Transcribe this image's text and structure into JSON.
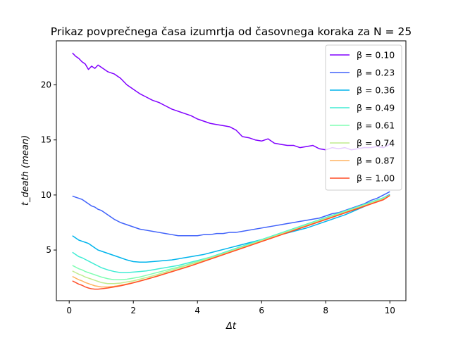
{
  "chart_data": {
    "type": "line",
    "title": "Prikaz povprečnega časa izumrtja od časovnega koraka za N = 25",
    "xlabel": "Δt",
    "ylabel": "t_death (mean)",
    "xlim": [
      -0.4,
      10.5
    ],
    "ylim": [
      0.4,
      24.0
    ],
    "xticks": [
      0,
      2,
      4,
      6,
      8,
      10
    ],
    "yticks": [
      5,
      10,
      15,
      20
    ],
    "grid": false,
    "legend_position": "top-right",
    "series": [
      {
        "name": "β = 0.10",
        "color": "#8000ff",
        "x": [
          0.1,
          0.2,
          0.3,
          0.4,
          0.5,
          0.6,
          0.7,
          0.8,
          0.9,
          1.0,
          1.2,
          1.4,
          1.6,
          1.8,
          2.0,
          2.2,
          2.4,
          2.6,
          2.8,
          3.0,
          3.2,
          3.4,
          3.6,
          3.8,
          4.0,
          4.2,
          4.4,
          4.6,
          4.8,
          5.0,
          5.2,
          5.4,
          5.6,
          5.8,
          6.0,
          6.2,
          6.4,
          6.6,
          6.8,
          7.0,
          7.2,
          7.4,
          7.6,
          7.8,
          8.0,
          8.2,
          8.4,
          8.6,
          8.8,
          9.0,
          9.2,
          9.4,
          9.6,
          9.8,
          10.0
        ],
        "y": [
          22.9,
          22.6,
          22.4,
          22.1,
          21.9,
          21.4,
          21.7,
          21.5,
          21.8,
          21.6,
          21.2,
          21.0,
          20.6,
          20.0,
          19.6,
          19.2,
          18.9,
          18.6,
          18.4,
          18.1,
          17.8,
          17.6,
          17.4,
          17.2,
          16.9,
          16.7,
          16.5,
          16.4,
          16.3,
          16.2,
          15.9,
          15.3,
          15.2,
          15.0,
          14.9,
          15.1,
          14.7,
          14.6,
          14.5,
          14.5,
          14.3,
          14.4,
          14.5,
          14.2,
          14.1,
          14.3,
          14.2,
          14.3,
          14.1,
          14.2,
          14.3,
          14.3,
          14.4,
          14.3,
          14.6
        ]
      },
      {
        "name": "β = 0.23",
        "color": "#4062fa",
        "x": [
          0.1,
          0.2,
          0.3,
          0.4,
          0.5,
          0.6,
          0.7,
          0.8,
          0.9,
          1.0,
          1.2,
          1.4,
          1.6,
          1.8,
          2.0,
          2.2,
          2.4,
          2.6,
          2.8,
          3.0,
          3.2,
          3.4,
          3.6,
          3.8,
          4.0,
          4.2,
          4.4,
          4.6,
          4.8,
          5.0,
          5.2,
          5.4,
          5.6,
          5.8,
          6.0,
          6.2,
          6.4,
          6.6,
          6.8,
          7.0,
          7.2,
          7.4,
          7.6,
          7.8,
          8.0,
          8.2,
          8.4,
          8.6,
          8.8,
          9.0,
          9.2,
          9.4,
          9.6,
          9.8,
          10.0
        ],
        "y": [
          9.9,
          9.8,
          9.7,
          9.6,
          9.4,
          9.2,
          9.0,
          8.9,
          8.7,
          8.6,
          8.2,
          7.8,
          7.5,
          7.3,
          7.1,
          6.9,
          6.8,
          6.7,
          6.6,
          6.5,
          6.4,
          6.3,
          6.3,
          6.3,
          6.3,
          6.4,
          6.4,
          6.5,
          6.5,
          6.6,
          6.6,
          6.7,
          6.8,
          6.9,
          7.0,
          7.1,
          7.2,
          7.3,
          7.4,
          7.5,
          7.6,
          7.7,
          7.8,
          7.9,
          8.1,
          8.3,
          8.4,
          8.6,
          8.8,
          9.0,
          9.2,
          9.5,
          9.7,
          10.0,
          10.3
        ]
      },
      {
        "name": "β = 0.36",
        "color": "#00b4ec",
        "x": [
          0.1,
          0.2,
          0.3,
          0.4,
          0.5,
          0.6,
          0.7,
          0.8,
          0.9,
          1.0,
          1.2,
          1.4,
          1.6,
          1.8,
          2.0,
          2.2,
          2.4,
          2.6,
          2.8,
          3.0,
          3.2,
          3.4,
          3.6,
          3.8,
          4.0,
          4.2,
          4.4,
          4.6,
          4.8,
          5.0,
          5.2,
          5.4,
          5.6,
          5.8,
          6.0,
          6.2,
          6.4,
          6.6,
          6.8,
          7.0,
          7.2,
          7.4,
          7.6,
          7.8,
          8.0,
          8.2,
          8.4,
          8.6,
          8.8,
          9.0,
          9.2,
          9.4,
          9.6,
          9.8,
          10.0
        ],
        "y": [
          6.3,
          6.1,
          5.9,
          5.8,
          5.7,
          5.6,
          5.4,
          5.2,
          5.0,
          4.9,
          4.7,
          4.5,
          4.3,
          4.1,
          3.95,
          3.9,
          3.9,
          3.95,
          4.0,
          4.05,
          4.1,
          4.2,
          4.3,
          4.4,
          4.5,
          4.6,
          4.75,
          4.9,
          5.05,
          5.2,
          5.35,
          5.5,
          5.65,
          5.8,
          5.95,
          6.1,
          6.25,
          6.4,
          6.55,
          6.7,
          6.85,
          7.0,
          7.2,
          7.4,
          7.6,
          7.8,
          8.0,
          8.2,
          8.45,
          8.7,
          8.95,
          9.2,
          9.45,
          9.75,
          10.05
        ]
      },
      {
        "name": "β = 0.49",
        "color": "#40ecd4",
        "x": [
          0.1,
          0.2,
          0.3,
          0.4,
          0.5,
          0.6,
          0.7,
          0.8,
          0.9,
          1.0,
          1.2,
          1.4,
          1.6,
          1.8,
          2.0,
          2.2,
          2.4,
          2.6,
          2.8,
          3.0,
          3.2,
          3.4,
          3.6,
          3.8,
          4.0,
          4.2,
          4.4,
          4.6,
          4.8,
          5.0,
          5.2,
          5.4,
          5.6,
          5.8,
          6.0,
          6.2,
          6.4,
          6.6,
          6.8,
          7.0,
          7.2,
          7.4,
          7.6,
          7.8,
          8.0,
          8.2,
          8.4,
          8.6,
          8.8,
          9.0,
          9.2,
          9.4,
          9.6,
          9.8,
          10.0
        ],
        "y": [
          4.8,
          4.6,
          4.4,
          4.3,
          4.15,
          4.0,
          3.85,
          3.7,
          3.55,
          3.4,
          3.2,
          3.05,
          2.95,
          2.95,
          3.0,
          3.05,
          3.1,
          3.2,
          3.3,
          3.4,
          3.5,
          3.6,
          3.75,
          3.9,
          4.05,
          4.2,
          4.35,
          4.55,
          4.75,
          4.95,
          5.15,
          5.35,
          5.55,
          5.75,
          5.95,
          6.15,
          6.35,
          6.55,
          6.75,
          6.95,
          7.15,
          7.35,
          7.55,
          7.75,
          7.95,
          8.15,
          8.35,
          8.55,
          8.75,
          8.95,
          9.15,
          9.35,
          9.55,
          9.75,
          9.98
        ]
      },
      {
        "name": "β = 0.61",
        "color": "#80feb3",
        "x": [
          0.1,
          0.2,
          0.3,
          0.4,
          0.5,
          0.6,
          0.7,
          0.8,
          0.9,
          1.0,
          1.2,
          1.4,
          1.6,
          1.8,
          2.0,
          2.2,
          2.4,
          2.6,
          2.8,
          3.0,
          3.2,
          3.4,
          3.6,
          3.8,
          4.0,
          4.2,
          4.4,
          4.6,
          4.8,
          5.0,
          5.2,
          5.4,
          5.6,
          5.8,
          6.0,
          6.2,
          6.4,
          6.6,
          6.8,
          7.0,
          7.2,
          7.4,
          7.6,
          7.8,
          8.0,
          8.2,
          8.4,
          8.6,
          8.8,
          9.0,
          9.2,
          9.4,
          9.6,
          9.8,
          10.0
        ],
        "y": [
          3.6,
          3.45,
          3.3,
          3.2,
          3.05,
          2.95,
          2.85,
          2.75,
          2.65,
          2.55,
          2.4,
          2.3,
          2.3,
          2.35,
          2.45,
          2.55,
          2.7,
          2.85,
          3.0,
          3.15,
          3.3,
          3.45,
          3.6,
          3.78,
          3.96,
          4.14,
          4.32,
          4.5,
          4.7,
          4.9,
          5.1,
          5.3,
          5.5,
          5.7,
          5.9,
          6.1,
          6.3,
          6.5,
          6.7,
          6.9,
          7.1,
          7.3,
          7.5,
          7.7,
          7.9,
          8.1,
          8.3,
          8.5,
          8.7,
          8.9,
          9.1,
          9.3,
          9.5,
          9.7,
          9.98
        ]
      },
      {
        "name": "β = 0.74",
        "color": "#c0eb8d",
        "x": [
          0.1,
          0.2,
          0.3,
          0.4,
          0.5,
          0.6,
          0.7,
          0.8,
          0.9,
          1.0,
          1.2,
          1.4,
          1.6,
          1.8,
          2.0,
          2.2,
          2.4,
          2.6,
          2.8,
          3.0,
          3.2,
          3.4,
          3.6,
          3.8,
          4.0,
          4.2,
          4.4,
          4.6,
          4.8,
          5.0,
          5.2,
          5.4,
          5.6,
          5.8,
          6.0,
          6.2,
          6.4,
          6.6,
          6.8,
          7.0,
          7.2,
          7.4,
          7.6,
          7.8,
          8.0,
          8.2,
          8.4,
          8.6,
          8.8,
          9.0,
          9.2,
          9.4,
          9.6,
          9.8,
          10.0
        ],
        "y": [
          3.1,
          2.95,
          2.8,
          2.7,
          2.55,
          2.45,
          2.35,
          2.25,
          2.15,
          2.05,
          1.95,
          1.95,
          2.0,
          2.1,
          2.2,
          2.35,
          2.5,
          2.65,
          2.82,
          3.0,
          3.18,
          3.36,
          3.54,
          3.72,
          3.9,
          4.08,
          4.26,
          4.44,
          4.64,
          4.84,
          5.04,
          5.24,
          5.44,
          5.64,
          5.84,
          6.04,
          6.24,
          6.44,
          6.64,
          6.84,
          7.04,
          7.24,
          7.44,
          7.64,
          7.84,
          8.04,
          8.24,
          8.44,
          8.64,
          8.84,
          9.04,
          9.24,
          9.44,
          9.64,
          9.97
        ]
      },
      {
        "name": "β = 0.87",
        "color": "#ffb360",
        "x": [
          0.1,
          0.2,
          0.3,
          0.4,
          0.5,
          0.6,
          0.7,
          0.8,
          0.9,
          1.0,
          1.2,
          1.4,
          1.6,
          1.8,
          2.0,
          2.2,
          2.4,
          2.6,
          2.8,
          3.0,
          3.2,
          3.4,
          3.6,
          3.8,
          4.0,
          4.2,
          4.4,
          4.6,
          4.8,
          5.0,
          5.2,
          5.4,
          5.6,
          5.8,
          6.0,
          6.2,
          6.4,
          6.6,
          6.8,
          7.0,
          7.2,
          7.4,
          7.6,
          7.8,
          8.0,
          8.2,
          8.4,
          8.6,
          8.8,
          9.0,
          9.2,
          9.4,
          9.6,
          9.8,
          10.0
        ],
        "y": [
          2.6,
          2.45,
          2.3,
          2.2,
          2.05,
          1.95,
          1.85,
          1.75,
          1.7,
          1.65,
          1.65,
          1.7,
          1.8,
          1.92,
          2.05,
          2.2,
          2.36,
          2.52,
          2.7,
          2.88,
          3.06,
          3.24,
          3.42,
          3.6,
          3.8,
          4.0,
          4.2,
          4.4,
          4.6,
          4.8,
          5.0,
          5.2,
          5.4,
          5.6,
          5.8,
          6.0,
          6.2,
          6.4,
          6.6,
          6.8,
          7.0,
          7.2,
          7.4,
          7.6,
          7.8,
          8.0,
          8.2,
          8.4,
          8.6,
          8.8,
          9.0,
          9.2,
          9.4,
          9.6,
          9.96
        ]
      },
      {
        "name": "β = 1.00",
        "color": "#ff4d27",
        "x": [
          0.1,
          0.2,
          0.3,
          0.4,
          0.5,
          0.6,
          0.7,
          0.8,
          0.9,
          1.0,
          1.2,
          1.4,
          1.6,
          1.8,
          2.0,
          2.2,
          2.4,
          2.6,
          2.8,
          3.0,
          3.2,
          3.4,
          3.6,
          3.8,
          4.0,
          4.2,
          4.4,
          4.6,
          4.8,
          5.0,
          5.2,
          5.4,
          5.6,
          5.8,
          6.0,
          6.2,
          6.4,
          6.6,
          6.8,
          7.0,
          7.2,
          7.4,
          7.6,
          7.8,
          8.0,
          8.2,
          8.4,
          8.6,
          8.8,
          9.0,
          9.2,
          9.4,
          9.6,
          9.8,
          10.0
        ],
        "y": [
          2.2,
          2.05,
          1.9,
          1.8,
          1.65,
          1.55,
          1.48,
          1.45,
          1.45,
          1.48,
          1.55,
          1.65,
          1.75,
          1.88,
          2.02,
          2.17,
          2.33,
          2.5,
          2.67,
          2.85,
          3.03,
          3.21,
          3.39,
          3.57,
          3.77,
          3.97,
          4.17,
          4.37,
          4.57,
          4.77,
          4.97,
          5.17,
          5.37,
          5.57,
          5.77,
          5.97,
          6.17,
          6.37,
          6.57,
          6.77,
          6.97,
          7.17,
          7.37,
          7.57,
          7.77,
          7.97,
          8.17,
          8.37,
          8.57,
          8.77,
          8.97,
          9.17,
          9.37,
          9.57,
          9.95
        ]
      }
    ]
  }
}
